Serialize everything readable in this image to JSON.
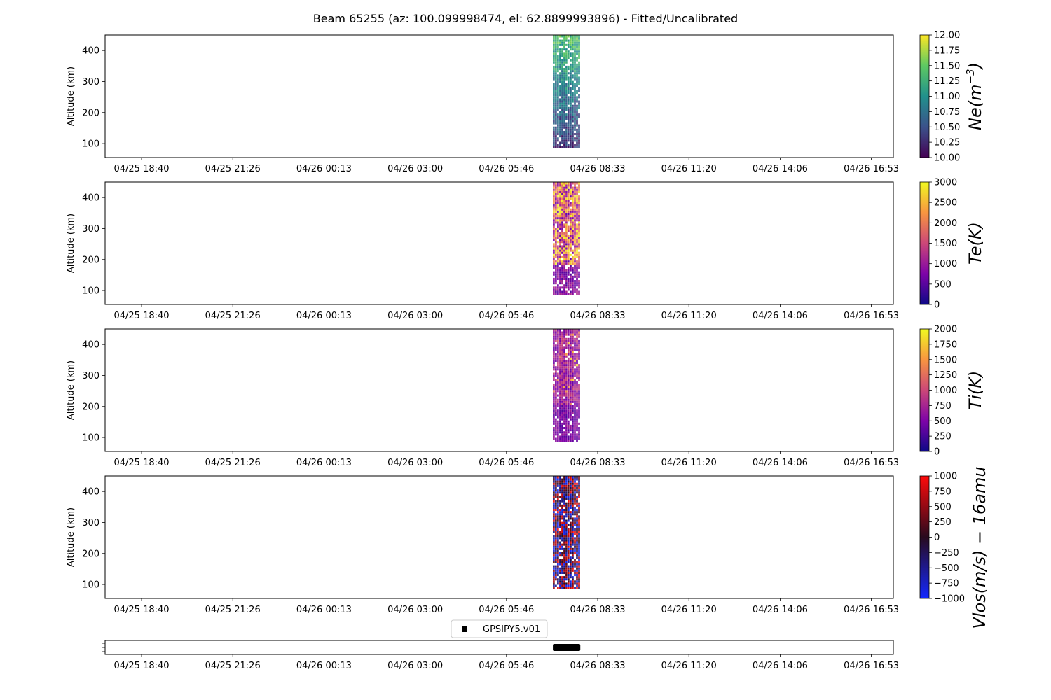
{
  "title": "Beam 65255 (az: 100.099998474, el: 62.8899993896) - Fitted/Uncalibrated",
  "chart_data": [
    {
      "type": "heatmap",
      "ylabel": "Altitude (km)",
      "ylim": [
        55,
        450
      ],
      "yticks": [
        "100",
        "200",
        "300",
        "400"
      ],
      "xticks": [
        "04/25 18:40",
        "04/25 21:26",
        "04/26 00:13",
        "04/26 03:00",
        "04/26 05:46",
        "04/26 08:33",
        "04/26 11:20",
        "04/26 14:06",
        "04/26 16:53"
      ],
      "data_time_range": [
        "04/26 07:10",
        "04/26 08:00"
      ],
      "data_altitude_range": [
        85,
        450
      ],
      "colorbar": {
        "label": "Ne(m^-3)",
        "label_parts": [
          "Ne(m",
          "−3",
          ")"
        ],
        "colormap": "viridis",
        "range": [
          10,
          12
        ],
        "ticks": [
          "10.00",
          "10.25",
          "10.50",
          "10.75",
          "11.00",
          "11.25",
          "11.50",
          "11.75",
          "12.00"
        ]
      }
    },
    {
      "type": "heatmap",
      "ylabel": "Altitude (km)",
      "ylim": [
        55,
        450
      ],
      "yticks": [
        "100",
        "200",
        "300",
        "400"
      ],
      "xticks": [
        "04/25 18:40",
        "04/25 21:26",
        "04/26 00:13",
        "04/26 03:00",
        "04/26 05:46",
        "04/26 08:33",
        "04/26 11:20",
        "04/26 14:06",
        "04/26 16:53"
      ],
      "data_time_range": [
        "04/26 07:10",
        "04/26 08:00"
      ],
      "data_altitude_range": [
        85,
        450
      ],
      "colorbar": {
        "label": "Te(K)",
        "colormap": "plasma",
        "range": [
          0,
          3000
        ],
        "ticks": [
          "0",
          "500",
          "1000",
          "1500",
          "2000",
          "2500",
          "3000"
        ]
      }
    },
    {
      "type": "heatmap",
      "ylabel": "Altitude (km)",
      "ylim": [
        55,
        450
      ],
      "yticks": [
        "100",
        "200",
        "300",
        "400"
      ],
      "xticks": [
        "04/25 18:40",
        "04/25 21:26",
        "04/26 00:13",
        "04/26 03:00",
        "04/26 05:46",
        "04/26 08:33",
        "04/26 11:20",
        "04/26 14:06",
        "04/26 16:53"
      ],
      "data_time_range": [
        "04/26 07:10",
        "04/26 08:00"
      ],
      "data_altitude_range": [
        85,
        450
      ],
      "colorbar": {
        "label": "Ti(K)",
        "colormap": "plasma",
        "range": [
          0,
          2000
        ],
        "ticks": [
          "0",
          "250",
          "500",
          "750",
          "1000",
          "1250",
          "1500",
          "1750",
          "2000"
        ]
      }
    },
    {
      "type": "heatmap",
      "ylabel": "Altitude (km)",
      "ylim": [
        55,
        450
      ],
      "yticks": [
        "100",
        "200",
        "300",
        "400"
      ],
      "xticks": [
        "04/25 18:40",
        "04/25 21:26",
        "04/26 00:13",
        "04/26 03:00",
        "04/26 05:46",
        "04/26 08:33",
        "04/26 11:20",
        "04/26 14:06",
        "04/26 16:53"
      ],
      "data_time_range": [
        "04/26 07:10",
        "04/26 08:00"
      ],
      "data_altitude_range": [
        85,
        450
      ],
      "colorbar": {
        "label": "Vlos(m/s) − 16amu",
        "colormap": "blue-black-red",
        "range": [
          -1000,
          1000
        ],
        "ticks": [
          "−1000",
          "−750",
          "−500",
          "−250",
          "0",
          "250",
          "500",
          "750",
          "1000"
        ]
      }
    },
    {
      "type": "scatter",
      "xticks": [
        "04/25 18:40",
        "04/25 21:26",
        "04/26 00:13",
        "04/26 03:00",
        "04/26 05:46",
        "04/26 08:33",
        "04/26 11:20",
        "04/26 14:06",
        "04/26 16:53"
      ],
      "legend": [
        "GPSIPY5.v01"
      ],
      "legend_placement": "upper-center above axes",
      "marker": "square",
      "series": [
        {
          "name": "GPSIPY5.v01",
          "x_range": [
            "04/26 07:10",
            "04/26 08:00"
          ]
        }
      ]
    }
  ]
}
